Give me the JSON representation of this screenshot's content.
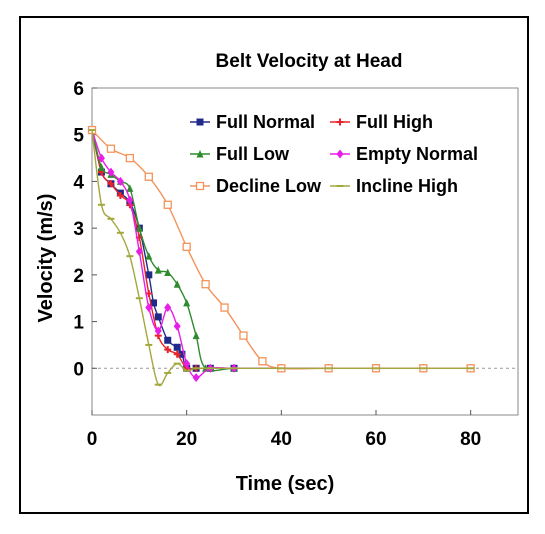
{
  "chart_data": {
    "type": "line",
    "title": "Belt Velocity at Head",
    "xlabel": "Time (sec)",
    "ylabel": "Velocity (m/s)",
    "xlim": [
      0,
      90
    ],
    "ylim": [
      -1,
      6
    ],
    "xticks": [
      0,
      20,
      40,
      60,
      80
    ],
    "yticks": [
      0,
      1,
      2,
      3,
      4,
      5,
      6
    ],
    "grid": false,
    "legend": "top-right",
    "series": [
      {
        "name": "Full Normal",
        "color": "#1f2a8a",
        "marker": "square-filled",
        "x": [
          0,
          2,
          4,
          6,
          8,
          10,
          12,
          13,
          14,
          16,
          18,
          19,
          20,
          22,
          25,
          30,
          40,
          50,
          60,
          70,
          80
        ],
        "y": [
          5.1,
          4.2,
          3.95,
          3.75,
          3.55,
          3.0,
          2.0,
          1.4,
          1.1,
          0.6,
          0.45,
          0.3,
          0.0,
          0.0,
          0.0,
          0.0,
          0.0,
          0.0,
          0.0,
          0.0,
          0.0
        ]
      },
      {
        "name": "Full High",
        "color": "#e8232a",
        "marker": "plus",
        "x": [
          0,
          2,
          4,
          6,
          8,
          10,
          12,
          14,
          16,
          18,
          20,
          22,
          25,
          30,
          40,
          50,
          60,
          70,
          80
        ],
        "y": [
          5.1,
          4.2,
          3.95,
          3.7,
          3.5,
          2.8,
          1.6,
          0.7,
          0.4,
          0.3,
          0.0,
          0.0,
          0.0,
          0.0,
          0.0,
          0.0,
          0.0,
          0.0,
          0.0
        ]
      },
      {
        "name": "Full Low",
        "color": "#2e8b2e",
        "marker": "triangle-filled",
        "x": [
          0,
          2,
          4,
          6,
          8,
          10,
          12,
          14,
          16,
          18,
          20,
          22,
          24,
          30,
          40,
          50,
          60,
          70,
          80
        ],
        "y": [
          5.1,
          4.3,
          4.15,
          4.0,
          3.85,
          3.0,
          2.4,
          2.1,
          2.05,
          1.8,
          1.4,
          0.7,
          0.0,
          0.0,
          0.0,
          0.0,
          0.0,
          0.0,
          0.0
        ]
      },
      {
        "name": "Empty Normal",
        "color": "#e81ee8",
        "marker": "diamond-filled",
        "x": [
          0,
          2,
          4,
          6,
          8,
          10,
          12,
          14,
          16,
          18,
          20,
          22,
          25,
          30,
          40,
          50,
          60,
          70,
          80
        ],
        "y": [
          5.1,
          4.5,
          4.2,
          4.0,
          3.6,
          2.5,
          1.3,
          0.8,
          1.3,
          0.9,
          0.1,
          -0.2,
          0.0,
          0.0,
          0.0,
          0.0,
          0.0,
          0.0,
          0.0
        ]
      },
      {
        "name": "Decline Low",
        "color": "#f4935a",
        "marker": "square-open",
        "x": [
          0,
          4,
          8,
          12,
          16,
          20,
          24,
          28,
          32,
          36,
          40,
          50,
          60,
          70,
          80
        ],
        "y": [
          5.1,
          4.7,
          4.5,
          4.1,
          3.5,
          2.6,
          1.8,
          1.3,
          0.7,
          0.15,
          0.0,
          0.0,
          0.0,
          0.0,
          0.0
        ]
      },
      {
        "name": "Incline High",
        "color": "#a3a83c",
        "marker": "minus",
        "x": [
          0,
          2,
          4,
          6,
          8,
          10,
          12,
          14,
          16,
          18,
          20,
          22,
          25,
          30,
          40,
          50,
          60,
          70,
          80
        ],
        "y": [
          5.1,
          3.5,
          3.2,
          2.9,
          2.4,
          1.5,
          0.5,
          -0.35,
          -0.1,
          0.1,
          -0.05,
          0.0,
          0.0,
          0.0,
          0.0,
          0.0,
          0.0,
          0.0,
          0.0
        ]
      }
    ]
  }
}
